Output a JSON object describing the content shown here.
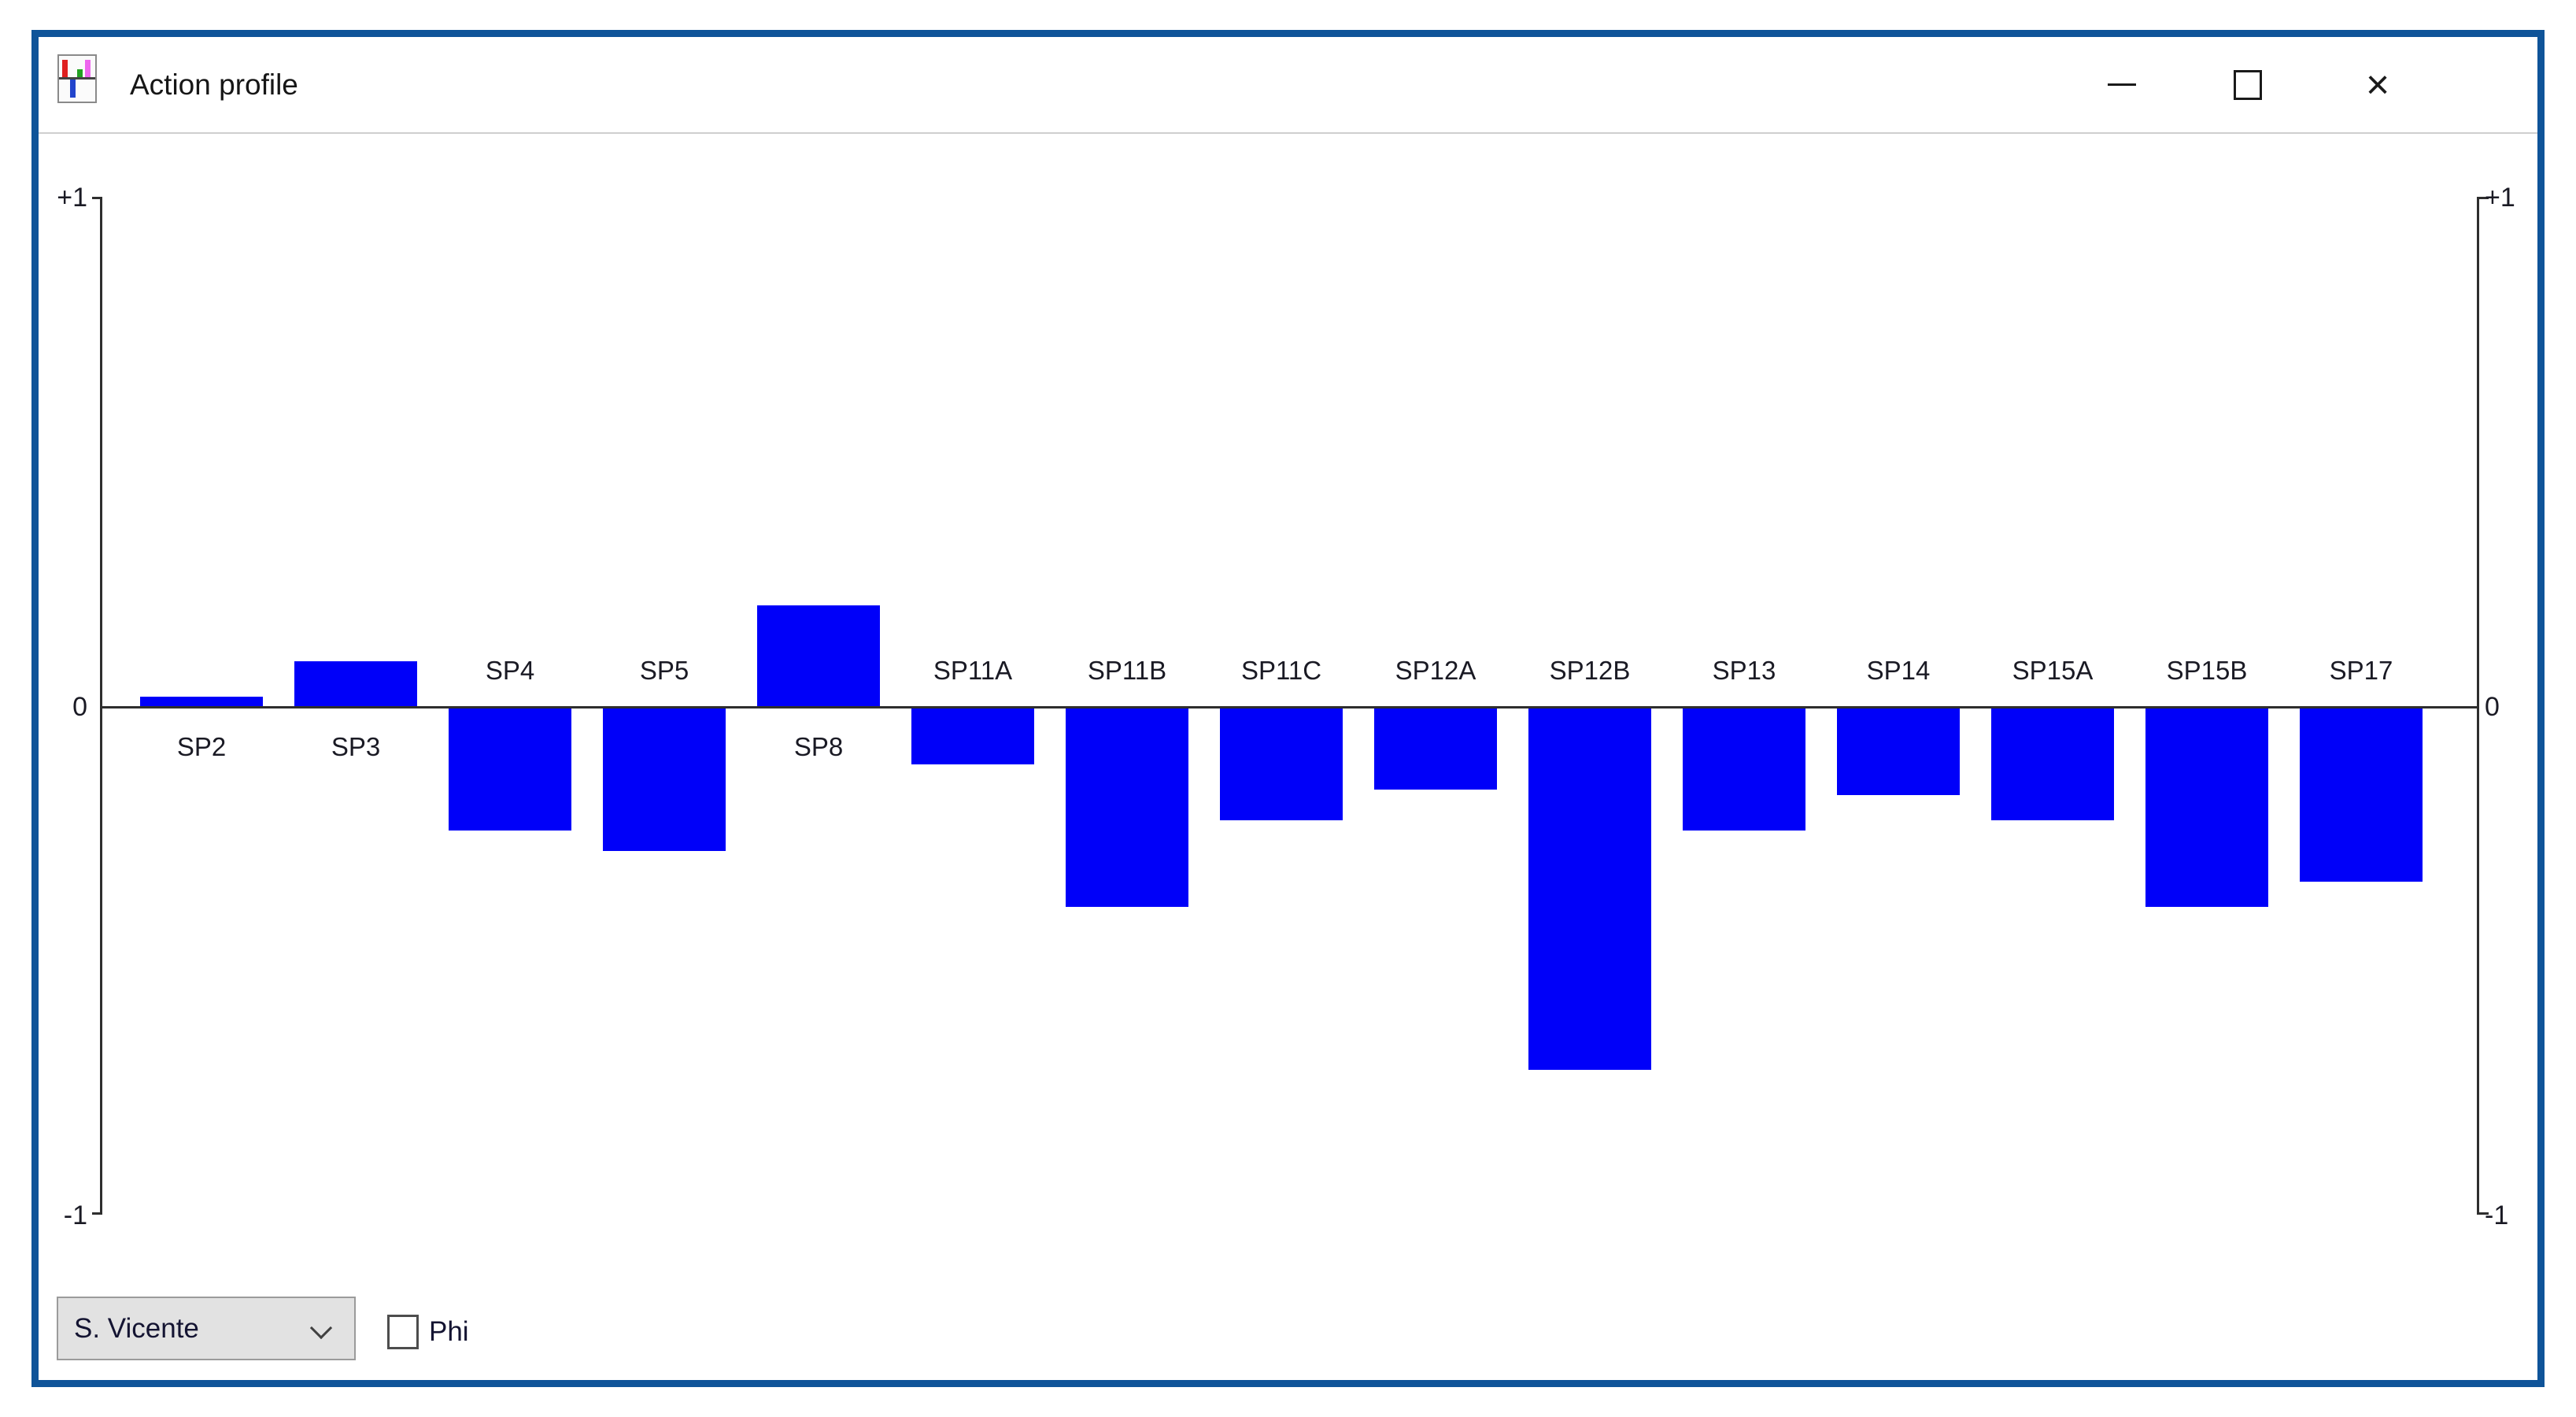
{
  "window": {
    "title": "Action profile",
    "icon": "mini-bar-chart-icon",
    "controls": {
      "minimize": "minimize",
      "maximize": "maximize",
      "close_glyph": "×"
    }
  },
  "chart_data": {
    "type": "bar",
    "title": "Action profile",
    "categories": [
      "SP2",
      "SP3",
      "SP4",
      "SP5",
      "SP8",
      "SP11A",
      "SP11B",
      "SP11C",
      "SP12A",
      "SP12B",
      "SP13",
      "SP14",
      "SP15A",
      "SP15B",
      "SP17"
    ],
    "values": [
      0.02,
      0.09,
      -0.24,
      -0.28,
      0.2,
      -0.11,
      -0.39,
      -0.22,
      -0.16,
      -0.71,
      -0.24,
      -0.17,
      -0.22,
      -0.39,
      -0.34
    ],
    "ylim": [
      -1,
      1
    ],
    "yticks_left": [
      "+1",
      "0",
      "-1"
    ],
    "yticks_right": [
      "+1",
      "0",
      "-1"
    ],
    "grid": false,
    "legend": false,
    "bar_color": "#0000f9",
    "axis_color": "#2e2e2e"
  },
  "footer": {
    "alternative_dropdown": {
      "value": "S. Vicente"
    },
    "phi_checkbox": {
      "label": "Phi",
      "checked": false
    }
  }
}
